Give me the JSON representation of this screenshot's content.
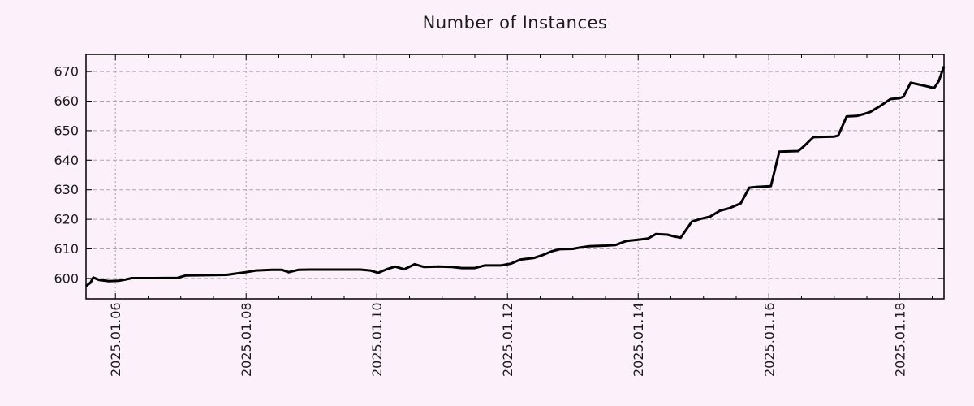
{
  "chart_data": {
    "type": "line",
    "title": "Number of Instances",
    "xlabel": "",
    "ylabel": "",
    "legend": "none",
    "grid": true,
    "xlim_days": [
      5.55,
      18.68
    ],
    "ylim": [
      593.1,
      675.8
    ],
    "y_ticks": [
      600,
      610,
      620,
      630,
      640,
      650,
      660,
      670
    ],
    "x_ticks": [
      {
        "day": 6,
        "label": "2025.01.06"
      },
      {
        "day": 8,
        "label": "2025.01.08"
      },
      {
        "day": 10,
        "label": "2025.01.10"
      },
      {
        "day": 12,
        "label": "2025.01.12"
      },
      {
        "day": 14,
        "label": "2025.01.14"
      },
      {
        "day": 16,
        "label": "2025.01.16"
      },
      {
        "day": 18,
        "label": "2025.01.18"
      }
    ],
    "x_minor_step_days": 0.5,
    "colors": {
      "background": "#fcf0fa",
      "line": "#000000",
      "grid": "#a9a3ab",
      "axis": "#000000",
      "text": "#1b1b1b"
    },
    "series": [
      {
        "name": "instances",
        "points": [
          [
            5.55,
            597.4
          ],
          [
            5.62,
            598.6
          ],
          [
            5.66,
            600.3
          ],
          [
            5.75,
            599.5
          ],
          [
            5.9,
            599.1
          ],
          [
            6.05,
            599.2
          ],
          [
            6.15,
            599.6
          ],
          [
            6.25,
            600.1
          ],
          [
            6.6,
            600.1
          ],
          [
            6.95,
            600.2
          ],
          [
            7.08,
            601.0
          ],
          [
            7.4,
            601.1
          ],
          [
            7.7,
            601.2
          ],
          [
            7.8,
            601.5
          ],
          [
            8.0,
            602.1
          ],
          [
            8.15,
            602.7
          ],
          [
            8.4,
            602.9
          ],
          [
            8.55,
            602.9
          ],
          [
            8.65,
            602.1
          ],
          [
            8.8,
            602.9
          ],
          [
            9.0,
            603.0
          ],
          [
            9.4,
            603.0
          ],
          [
            9.75,
            603.0
          ],
          [
            9.9,
            602.7
          ],
          [
            10.02,
            601.9
          ],
          [
            10.15,
            603.1
          ],
          [
            10.28,
            604.0
          ],
          [
            10.42,
            603.1
          ],
          [
            10.58,
            604.8
          ],
          [
            10.72,
            603.9
          ],
          [
            10.95,
            604.0
          ],
          [
            11.15,
            603.9
          ],
          [
            11.3,
            603.5
          ],
          [
            11.5,
            603.5
          ],
          [
            11.65,
            604.4
          ],
          [
            11.9,
            604.4
          ],
          [
            12.05,
            605.0
          ],
          [
            12.2,
            606.4
          ],
          [
            12.4,
            606.9
          ],
          [
            12.55,
            608.0
          ],
          [
            12.68,
            609.2
          ],
          [
            12.8,
            609.9
          ],
          [
            13.0,
            610.0
          ],
          [
            13.12,
            610.5
          ],
          [
            13.25,
            610.9
          ],
          [
            13.5,
            611.1
          ],
          [
            13.65,
            611.3
          ],
          [
            13.82,
            612.7
          ],
          [
            14.0,
            613.1
          ],
          [
            14.15,
            613.5
          ],
          [
            14.27,
            615.0
          ],
          [
            14.45,
            614.8
          ],
          [
            14.55,
            614.2
          ],
          [
            14.65,
            613.8
          ],
          [
            14.82,
            619.2
          ],
          [
            14.95,
            620.1
          ],
          [
            15.1,
            620.9
          ],
          [
            15.25,
            622.9
          ],
          [
            15.4,
            623.8
          ],
          [
            15.57,
            625.4
          ],
          [
            15.7,
            630.7
          ],
          [
            15.82,
            631.0
          ],
          [
            16.03,
            631.2
          ],
          [
            16.16,
            642.9
          ],
          [
            16.3,
            643.0
          ],
          [
            16.45,
            643.1
          ],
          [
            16.55,
            645.0
          ],
          [
            16.68,
            647.8
          ],
          [
            17.0,
            648.0
          ],
          [
            17.06,
            648.3
          ],
          [
            17.19,
            654.8
          ],
          [
            17.35,
            655.0
          ],
          [
            17.45,
            655.6
          ],
          [
            17.55,
            656.3
          ],
          [
            17.7,
            658.3
          ],
          [
            17.86,
            660.7
          ],
          [
            18.0,
            661.0
          ],
          [
            18.06,
            661.5
          ],
          [
            18.17,
            666.2
          ],
          [
            18.3,
            665.6
          ],
          [
            18.42,
            665.0
          ],
          [
            18.53,
            664.4
          ],
          [
            18.6,
            666.8
          ],
          [
            18.68,
            671.8
          ]
        ]
      }
    ]
  }
}
